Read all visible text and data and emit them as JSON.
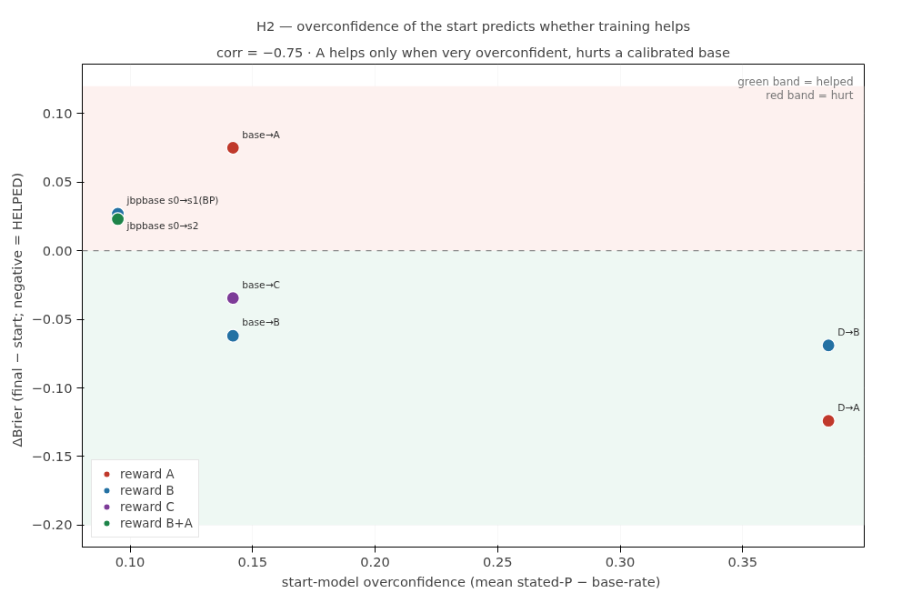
{
  "chart_data": {
    "type": "scatter",
    "title": "H2 — overconfidence of the start predicts whether training helps",
    "subtitle": "corr = −0.75 · A helps only when very overconfident, hurts a calibrated base",
    "xlabel": "start-model overconfidence  (mean stated-P − base-rate)",
    "ylabel": "ΔBrier  (final − start;  negative = HELPED)",
    "xlim": [
      0.0805,
      0.3996
    ],
    "ylim": [
      -0.216,
      0.136
    ],
    "xticks": [
      {
        "value": 0.1,
        "label": "0.10"
      },
      {
        "value": 0.15,
        "label": "0.15"
      },
      {
        "value": 0.2,
        "label": "0.20"
      },
      {
        "value": 0.25,
        "label": "0.25"
      },
      {
        "value": 0.3,
        "label": "0.30"
      },
      {
        "value": 0.35,
        "label": "0.35"
      }
    ],
    "yticks": [
      {
        "value": -0.2,
        "label": "−0.20"
      },
      {
        "value": -0.15,
        "label": "−0.15"
      },
      {
        "value": -0.1,
        "label": "−0.10"
      },
      {
        "value": -0.05,
        "label": "−0.05"
      },
      {
        "value": 0,
        "label": "0.00"
      },
      {
        "value": 0.05,
        "label": "0.05"
      },
      {
        "value": 0.1,
        "label": "0.10"
      }
    ],
    "series": [
      {
        "name": "reward A",
        "color": "#c0392b",
        "x": [
          0.142,
          0.385
        ],
        "values": [
          0.075,
          -0.124
        ]
      },
      {
        "name": "reward B",
        "color": "#2471a3",
        "x": [
          0.095,
          0.142,
          0.385
        ],
        "values": [
          0.027,
          -0.062,
          -0.069
        ]
      },
      {
        "name": "reward C",
        "color": "#7d3c98",
        "x": [
          0.142
        ],
        "values": [
          -0.0345
        ]
      },
      {
        "name": "reward B+A",
        "color": "#1e8449",
        "x": [
          0.095
        ],
        "values": [
          0.023
        ]
      }
    ],
    "ref_lines": [
      {
        "axis": "y",
        "value": 0,
        "color": "#888888",
        "line_style": "dashed"
      }
    ],
    "bands": [
      {
        "axis": "y",
        "from": 0,
        "to": 0.12,
        "color": "#fdf1ef"
      },
      {
        "axis": "y",
        "from": -0.2,
        "to": 0,
        "color": "#eef8f3"
      }
    ],
    "annotations": [
      {
        "text": "base→A",
        "x": 0.142,
        "y": 0.075
      },
      {
        "text": "jbpbase s0→s1(BP)",
        "x": 0.095,
        "y": 0.027
      },
      {
        "text": "jbpbase s0→s2",
        "x": 0.095,
        "y": 0.023
      },
      {
        "text": "base→C",
        "x": 0.142,
        "y": -0.0345
      },
      {
        "text": "base→B",
        "x": 0.142,
        "y": -0.062
      },
      {
        "text": "D→B",
        "x": 0.385,
        "y": -0.069
      },
      {
        "text": "D→A",
        "x": 0.385,
        "y": -0.124
      },
      "green band = helped",
      "red band = hurt"
    ],
    "grid": true,
    "legend": "bottom left",
    "marker": "circle"
  }
}
